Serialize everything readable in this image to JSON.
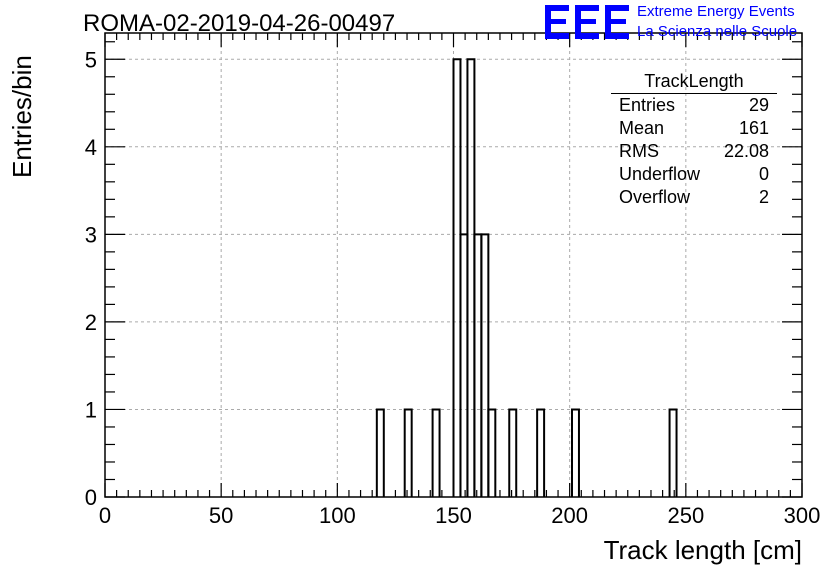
{
  "header": {
    "run_title": "ROMA-02-2019-04-26-00497",
    "logo_text": "EEE",
    "org_line1": "Extreme Energy Events",
    "org_line2": "La Scienza nelle Scuole"
  },
  "stats_box": {
    "title": "TrackLength",
    "rows": [
      {
        "label": "Entries",
        "value": "29"
      },
      {
        "label": "Mean",
        "value": "161"
      },
      {
        "label": "RMS",
        "value": "22.08"
      },
      {
        "label": "Underflow",
        "value": "0"
      },
      {
        "label": "Overflow",
        "value": "2"
      }
    ]
  },
  "colors": {
    "accent": "#0000ff",
    "line": "#000000",
    "grid": "#aaaaaa"
  },
  "chart_data": {
    "type": "histogram",
    "title": "ROMA-02-2019-04-26-00497",
    "xlabel": "Track length [cm]",
    "ylabel": "Entries/bin",
    "xlim": [
      0,
      300
    ],
    "ylim": [
      0,
      5.3
    ],
    "grid": true,
    "x_ticks": [
      0,
      50,
      100,
      150,
      200,
      250,
      300
    ],
    "y_ticks": [
      0,
      1,
      2,
      3,
      4,
      5
    ],
    "bin_width": 3,
    "bins": [
      {
        "x0": 117,
        "x1": 120,
        "count": 1
      },
      {
        "x0": 129,
        "x1": 132,
        "count": 1
      },
      {
        "x0": 141,
        "x1": 144,
        "count": 1
      },
      {
        "x0": 150,
        "x1": 153,
        "count": 5
      },
      {
        "x0": 153,
        "x1": 156,
        "count": 3
      },
      {
        "x0": 156,
        "x1": 159,
        "count": 5
      },
      {
        "x0": 159,
        "x1": 162,
        "count": 3
      },
      {
        "x0": 162,
        "x1": 165,
        "count": 3
      },
      {
        "x0": 165,
        "x1": 168,
        "count": 1
      },
      {
        "x0": 174,
        "x1": 177,
        "count": 1
      },
      {
        "x0": 186,
        "x1": 189,
        "count": 1
      },
      {
        "x0": 201,
        "x1": 204,
        "count": 1
      },
      {
        "x0": 243,
        "x1": 246,
        "count": 1
      }
    ]
  }
}
